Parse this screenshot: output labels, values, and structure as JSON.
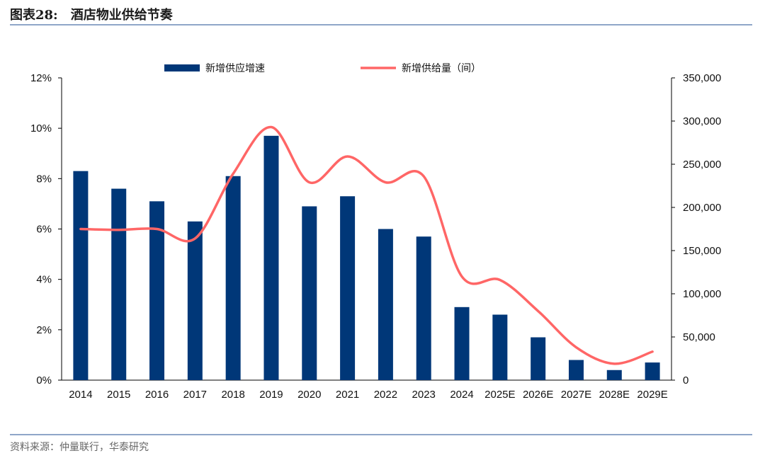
{
  "header": {
    "figure_label": "图表28:",
    "title": "酒店物业供给节奏"
  },
  "footer": {
    "source": "资料来源：仲量联行，华泰研究"
  },
  "chart_data": {
    "type": "bar+line",
    "categories": [
      "2014",
      "2015",
      "2016",
      "2017",
      "2018",
      "2019",
      "2020",
      "2021",
      "2022",
      "2023",
      "2024",
      "2025E",
      "2026E",
      "2027E",
      "2028E",
      "2029E"
    ],
    "series": [
      {
        "name": "新增供应增速",
        "type": "bar",
        "axis": "left",
        "color": "#003778",
        "values": [
          8.3,
          7.6,
          7.1,
          6.3,
          8.1,
          9.7,
          6.9,
          7.3,
          6.0,
          5.7,
          2.9,
          2.6,
          1.7,
          0.8,
          0.4,
          0.7
        ]
      },
      {
        "name": "新增供给量（间）",
        "type": "line",
        "axis": "right",
        "color": "#ff6666",
        "values": [
          175000,
          174000,
          175000,
          164000,
          239000,
          293000,
          229000,
          259000,
          229000,
          236000,
          120000,
          116000,
          80000,
          38000,
          19000,
          33000
        ]
      }
    ],
    "left_axis": {
      "ylim": [
        0,
        12
      ],
      "ticks": [
        "0%",
        "2%",
        "4%",
        "6%",
        "8%",
        "10%",
        "12%"
      ]
    },
    "right_axis": {
      "ylim": [
        0,
        350000
      ],
      "ticks": [
        "0",
        "50,000",
        "100,000",
        "150,000",
        "200,000",
        "250,000",
        "300,000",
        "350,000"
      ]
    },
    "legend": "top",
    "grid": false
  }
}
